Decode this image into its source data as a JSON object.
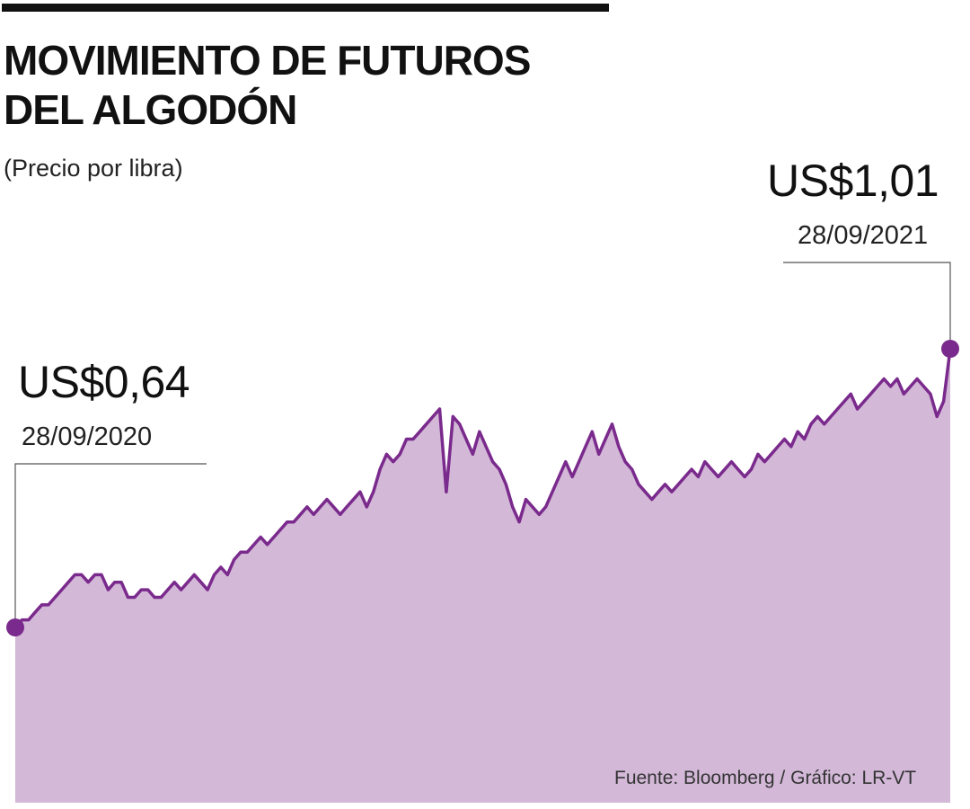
{
  "header": {
    "title_line1": "MOVIMIENTO DE FUTUROS",
    "title_line2": "DEL ALGODÓN",
    "subtitle": "(Precio por libra)"
  },
  "annotations": {
    "start": {
      "value": "US$0,64",
      "date": "28/09/2020"
    },
    "end": {
      "value": "US$1,01",
      "date": "28/09/2021"
    }
  },
  "footer": {
    "source": "Fuente: Bloomberg / Gráfico: LR-VT"
  },
  "colors": {
    "fill": "#d3b8d8",
    "line": "#7a2a8c",
    "rule": "#111111",
    "leader": "#555555"
  },
  "chart_data": {
    "type": "area",
    "title": "MOVIMIENTO DE FUTUROS DEL ALGODÓN",
    "subtitle": "(Precio por libra)",
    "xlabel": "",
    "ylabel": "",
    "x_range": [
      "28/09/2020",
      "28/09/2021"
    ],
    "ylim": [
      0,
      1.01
    ],
    "grid": false,
    "legend": "none",
    "series": [
      {
        "values": [
          0.64,
          0.65,
          0.65,
          0.66,
          0.67,
          0.67,
          0.68,
          0.69,
          0.7,
          0.71,
          0.71,
          0.7,
          0.71,
          0.71,
          0.69,
          0.7,
          0.7,
          0.68,
          0.68,
          0.69,
          0.69,
          0.68,
          0.68,
          0.69,
          0.7,
          0.69,
          0.7,
          0.71,
          0.7,
          0.69,
          0.71,
          0.72,
          0.71,
          0.73,
          0.74,
          0.74,
          0.75,
          0.76,
          0.75,
          0.76,
          0.77,
          0.78,
          0.78,
          0.79,
          0.8,
          0.79,
          0.8,
          0.81,
          0.8,
          0.79,
          0.8,
          0.81,
          0.82,
          0.8,
          0.82,
          0.85,
          0.87,
          0.86,
          0.87,
          0.89,
          0.89,
          0.9,
          0.91,
          0.92,
          0.93,
          0.82,
          0.92,
          0.91,
          0.89,
          0.87,
          0.9,
          0.88,
          0.86,
          0.85,
          0.83,
          0.8,
          0.78,
          0.81,
          0.8,
          0.79,
          0.8,
          0.82,
          0.84,
          0.86,
          0.84,
          0.86,
          0.88,
          0.9,
          0.87,
          0.89,
          0.91,
          0.88,
          0.86,
          0.85,
          0.83,
          0.82,
          0.81,
          0.82,
          0.83,
          0.82,
          0.83,
          0.84,
          0.85,
          0.84,
          0.86,
          0.85,
          0.84,
          0.85,
          0.86,
          0.85,
          0.84,
          0.85,
          0.87,
          0.86,
          0.87,
          0.88,
          0.89,
          0.88,
          0.9,
          0.89,
          0.91,
          0.92,
          0.91,
          0.92,
          0.93,
          0.94,
          0.95,
          0.93,
          0.94,
          0.95,
          0.96,
          0.97,
          0.96,
          0.97,
          0.95,
          0.96,
          0.97,
          0.96,
          0.95,
          0.92,
          0.94,
          1.01
        ]
      }
    ]
  }
}
